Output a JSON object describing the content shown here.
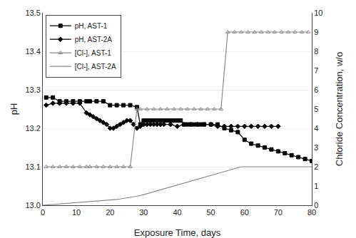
{
  "chart_data": {
    "type": "line",
    "x_label": "Exposure Time, days",
    "y_label": "pH",
    "y2_label": "Chloride Concentration, w/o",
    "xlim": [
      0,
      80
    ],
    "ylim": [
      13.0,
      13.5
    ],
    "y2lim": [
      0,
      10
    ],
    "xticks": [
      0,
      10,
      20,
      30,
      40,
      50,
      60,
      70,
      80
    ],
    "yticks": [
      {
        "value": 13.0,
        "label": "13.0"
      },
      13.1,
      13.2,
      13.3,
      13.4,
      13.5
    ],
    "y2ticks": [
      0,
      1,
      2,
      3,
      4,
      5,
      6,
      7,
      8,
      9,
      10
    ],
    "grid": true,
    "legend": "upper left",
    "series": [
      {
        "name": "pH, AST-1",
        "color": "#000000",
        "marker": "square",
        "line_style": "solid",
        "x": [
          1,
          3,
          5,
          7,
          9,
          11,
          13,
          14,
          16,
          18,
          20,
          22,
          24,
          26,
          28,
          29,
          30,
          31,
          32,
          33,
          34,
          35,
          36,
          37,
          38,
          39,
          40,
          41,
          42,
          43,
          44,
          45,
          46,
          47,
          48,
          50,
          52,
          54,
          56,
          58,
          60,
          62,
          64,
          66,
          68,
          70,
          72,
          74,
          76,
          78,
          80
        ],
        "values": [
          13.28,
          13.28,
          13.27,
          13.27,
          13.27,
          13.27,
          13.27,
          13.27,
          13.27,
          13.27,
          13.26,
          13.26,
          13.26,
          13.26,
          13.255,
          13.21,
          13.22,
          13.22,
          13.22,
          13.22,
          13.22,
          13.22,
          13.22,
          13.22,
          13.22,
          13.22,
          13.22,
          13.22,
          13.21,
          13.21,
          13.21,
          13.21,
          13.21,
          13.21,
          13.21,
          13.21,
          13.21,
          13.2,
          13.195,
          13.19,
          13.17,
          13.16,
          13.155,
          13.15,
          13.145,
          13.14,
          13.135,
          13.13,
          13.125,
          13.12,
          13.115
        ]
      },
      {
        "name": "pH, AST-2A",
        "color": "#000000",
        "marker": "diamond",
        "line_style": "solid",
        "x": [
          1,
          3,
          5,
          7,
          9,
          11,
          13,
          14,
          15,
          16,
          17,
          18,
          19,
          20,
          21,
          22,
          23,
          24,
          25,
          26,
          27,
          28,
          29,
          30,
          31,
          32,
          33,
          34,
          35,
          36,
          38,
          40,
          42,
          44,
          46,
          48,
          50,
          52,
          54,
          56,
          58,
          60,
          62,
          64,
          66,
          68,
          70
        ],
        "values": [
          13.26,
          13.265,
          13.265,
          13.265,
          13.265,
          13.265,
          13.24,
          13.235,
          13.23,
          13.225,
          13.22,
          13.215,
          13.21,
          13.2,
          13.2,
          13.205,
          13.21,
          13.215,
          13.22,
          13.22,
          13.21,
          13.2,
          13.205,
          13.21,
          13.21,
          13.21,
          13.21,
          13.21,
          13.21,
          13.21,
          13.21,
          13.205,
          13.21,
          13.21,
          13.21,
          13.21,
          13.21,
          13.205,
          13.205,
          13.205,
          13.205,
          13.205,
          13.205,
          13.205,
          13.205,
          13.205,
          13.205
        ]
      },
      {
        "name": "[Cl-], AST-1",
        "color": "#888888",
        "marker": "triangle-up-open",
        "line_style": "solid",
        "axis": "y2",
        "x": [
          1,
          3,
          5,
          7,
          9,
          11,
          13,
          14,
          16,
          18,
          20,
          22,
          24,
          26,
          28,
          29,
          31,
          33,
          35,
          37,
          39,
          41,
          43,
          45,
          47,
          49,
          51,
          53,
          55,
          57,
          59,
          61,
          63,
          65,
          67,
          69,
          71,
          73,
          75,
          77,
          79
        ],
        "values": [
          2,
          2,
          2,
          2,
          2,
          2,
          2,
          2,
          2,
          2,
          2,
          2,
          2,
          2,
          5,
          5,
          5,
          5,
          5,
          5,
          5,
          5,
          5,
          5,
          5,
          5,
          5,
          5,
          9,
          9,
          9,
          9,
          9,
          9,
          9,
          9,
          9,
          9,
          9,
          9,
          9
        ]
      },
      {
        "name": "[Cl-], AST-2A",
        "color": "#888888",
        "line_style": "solid",
        "axis": "y2",
        "x": [
          0,
          1,
          2,
          3,
          4,
          5,
          6,
          7,
          8,
          9,
          10,
          11,
          12,
          13,
          14,
          15,
          16,
          17,
          18,
          19,
          20,
          21,
          22,
          23,
          24,
          25,
          26,
          27,
          28,
          29,
          30,
          31,
          32,
          33,
          34,
          35,
          36,
          37,
          38,
          39,
          40,
          41,
          42,
          43,
          44,
          45,
          46,
          47,
          48,
          49,
          50,
          51,
          52,
          53,
          54,
          55,
          56,
          57,
          58,
          59,
          60,
          61,
          62,
          63,
          64,
          65,
          66,
          67,
          68,
          69,
          70,
          71,
          72,
          73,
          74,
          75,
          76,
          77,
          78,
          79,
          80
        ],
        "values": [
          0,
          0.013,
          0.025,
          0.038,
          0.05,
          0.063,
          0.075,
          0.088,
          0.1,
          0.113,
          0.125,
          0.138,
          0.15,
          0.163,
          0.175,
          0.188,
          0.2,
          0.213,
          0.225,
          0.238,
          0.25,
          0.275,
          0.3,
          0.325,
          0.35,
          0.375,
          0.4,
          0.425,
          0.45,
          0.5,
          0.55,
          0.6,
          0.65,
          0.7,
          0.75,
          0.8,
          0.85,
          0.9,
          0.95,
          1.0,
          1.05,
          1.1,
          1.15,
          1.2,
          1.25,
          1.3,
          1.35,
          1.4,
          1.45,
          1.5,
          1.55,
          1.6,
          1.65,
          1.7,
          1.75,
          1.8,
          1.85,
          1.9,
          1.95,
          2.0,
          2.0,
          2.0,
          2.0,
          2.0,
          2.0,
          2.0,
          2.0,
          2.0,
          2.0,
          2.0,
          2.0,
          2.0,
          2.0,
          2.0,
          2.0,
          2.0,
          2.0,
          2.0,
          2.0,
          2.0,
          2.0
        ]
      }
    ]
  }
}
